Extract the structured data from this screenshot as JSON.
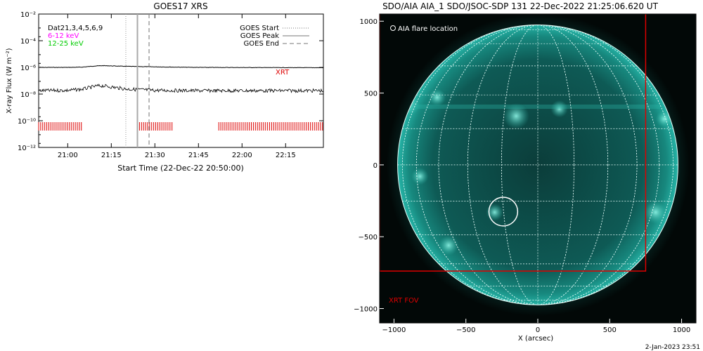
{
  "goes": {
    "title": "GOES17 XRS",
    "xlabel": "Start Time (22-Dec-22 20:50:00)",
    "ylabel": "X-ray Flux (W m⁻²)",
    "channel_list": "Dat21,3,4,5,6,9",
    "channel_1": "6-12 keV",
    "channel_2": "12-25 keV",
    "legend_start": "GOES Start",
    "legend_peak": "GOES Peak",
    "legend_end": "GOES End",
    "xrt_label": "XRT",
    "colors": {
      "channel_1": "#ff00ff",
      "channel_2": "#00cc00",
      "xrt": "#dd0000"
    }
  },
  "aia": {
    "title": "SDO/AIA AIA_1 SDO/JSOC-SDP 131 22-Dec-2022 21:25:06.620 UT",
    "legend": "AIA flare location",
    "fov_label": "XRT FOV",
    "xlabel": "X (arcsec)",
    "colors": {
      "sun": "#0a9a8c",
      "fov": "#dd0000"
    }
  },
  "footer": "2-Jan-2023 23:51",
  "chart_data": [
    {
      "type": "line",
      "title": "GOES17 XRS",
      "xlabel": "Start Time (22-Dec-22 20:50:00)",
      "ylabel": "X-ray Flux (W m⁻²)",
      "y_scale": "log",
      "xlim": [
        "20:50",
        "22:28"
      ],
      "ylim": [
        1e-12,
        0.01
      ],
      "x_ticks": [
        "21:00",
        "21:15",
        "21:30",
        "21:45",
        "22:00",
        "22:15"
      ],
      "y_ticks": [
        "10⁻¹²",
        "10⁻¹⁰",
        "10⁻⁸",
        "10⁻⁶",
        "10⁻⁴",
        "10⁻²"
      ],
      "series": [
        {
          "name": "6-12 keV",
          "x": [
            "20:50",
            "21:00",
            "21:05",
            "21:10",
            "21:12",
            "21:20",
            "21:30",
            "21:45",
            "22:00",
            "22:15",
            "22:28"
          ],
          "y": [
            1e-06,
            1e-06,
            1.05e-06,
            1.3e-06,
            1.35e-06,
            1.2e-06,
            1.1e-06,
            1e-06,
            9.8e-07,
            9.6e-07,
            9.5e-07
          ]
        },
        {
          "name": "12-25 keV",
          "x": [
            "20:50",
            "21:00",
            "21:05",
            "21:10",
            "21:12",
            "21:20",
            "21:30",
            "21:45",
            "22:00",
            "22:15",
            "22:28"
          ],
          "y": [
            1.8e-08,
            1.9e-08,
            2.3e-08,
            4e-08,
            4.2e-08,
            2.4e-08,
            1.9e-08,
            1.8e-08,
            1.8e-08,
            1.8e-08,
            1.8e-08
          ]
        }
      ],
      "vlines": [
        {
          "name": "GOES Start",
          "x": "21:20",
          "style": "dotted"
        },
        {
          "name": "GOES Peak",
          "x": "21:24",
          "style": "solid"
        },
        {
          "name": "GOES End",
          "x": "21:28",
          "style": "dashed"
        }
      ],
      "xrt_coverage": [
        [
          "20:50",
          "21:05"
        ],
        [
          "21:24",
          "21:36"
        ],
        [
          "21:52",
          "22:28"
        ]
      ]
    },
    {
      "type": "image",
      "title": "SDO/AIA AIA_1 SDO/JSOC-SDP 131 22-Dec-2022 21:25:06.620 UT",
      "xlabel": "X (arcsec)",
      "xlim": [
        -1100,
        1100
      ],
      "ylim": [
        -1100,
        1050
      ],
      "x_ticks": [
        -1000,
        -500,
        0,
        500,
        1000
      ],
      "y_ticks": [
        -1000,
        -500,
        0,
        500,
        1000
      ],
      "solar_radius_arcsec": 975,
      "flare_location": {
        "x": -240,
        "y": -325,
        "radius": 100
      },
      "xrt_fov": {
        "x": [
          -1100,
          750
        ],
        "y": [
          -740,
          1100
        ]
      }
    }
  ]
}
